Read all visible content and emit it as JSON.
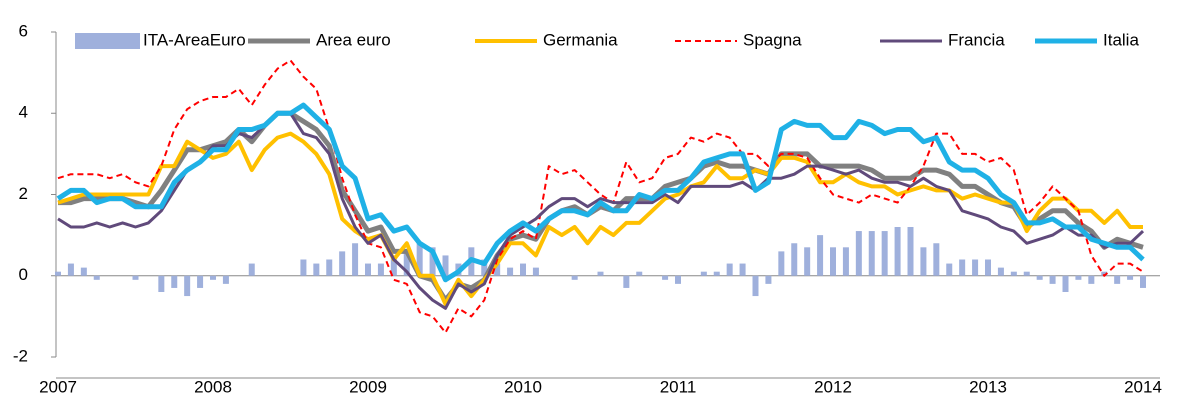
{
  "chart_data": {
    "type": "line",
    "categories": [
      "2007",
      null,
      null,
      null,
      null,
      null,
      null,
      null,
      null,
      null,
      null,
      null,
      "2008",
      null,
      null,
      null,
      null,
      null,
      null,
      null,
      null,
      null,
      null,
      null,
      "2009",
      null,
      null,
      null,
      null,
      null,
      null,
      null,
      null,
      null,
      null,
      null,
      "2010",
      null,
      null,
      null,
      null,
      null,
      null,
      null,
      null,
      null,
      null,
      null,
      "2011",
      null,
      null,
      null,
      null,
      null,
      null,
      null,
      null,
      null,
      null,
      null,
      "2012",
      null,
      null,
      null,
      null,
      null,
      null,
      null,
      null,
      null,
      null,
      null,
      "2013",
      null,
      null,
      null,
      null,
      null,
      null,
      null,
      null,
      null,
      null,
      null,
      "2014"
    ],
    "ylim": [
      -2,
      6
    ],
    "yticks": [
      -2,
      0,
      2,
      4,
      6
    ],
    "grid": false,
    "legend": "top",
    "series": [
      {
        "name": "ITA-AreaEuro",
        "type": "bar",
        "color": "#9fb0dc",
        "values": [
          0.1,
          0.3,
          0.2,
          -0.1,
          0,
          0,
          -0.1,
          0,
          -0.4,
          -0.3,
          -0.5,
          -0.3,
          -0.1,
          -0.2,
          0,
          0.3,
          0,
          0,
          0,
          0.4,
          0.3,
          0.4,
          0.6,
          0.8,
          0.3,
          0.3,
          0.5,
          0.6,
          0.8,
          0.7,
          0.5,
          0.3,
          0.7,
          0.4,
          0.3,
          0.2,
          0.3,
          0.2,
          0,
          0,
          -0.1,
          0,
          0.1,
          0,
          -0.3,
          0.1,
          0,
          -0.1,
          -0.2,
          0,
          0.1,
          0.1,
          0.3,
          0.3,
          -0.5,
          -0.2,
          0.6,
          0.8,
          0.7,
          1.0,
          0.7,
          0.7,
          1.1,
          1.1,
          1.1,
          1.2,
          1.2,
          0.7,
          0.8,
          0.3,
          0.4,
          0.4,
          0.4,
          0.2,
          0.1,
          0.1,
          -0.1,
          -0.2,
          -0.4,
          -0.1,
          -0.2,
          0.1,
          -0.2,
          -0.1,
          -0.3
        ]
      },
      {
        "name": "Area euro",
        "type": "line",
        "color": "#808080",
        "values": [
          1.8,
          1.8,
          1.9,
          1.9,
          1.9,
          1.9,
          1.8,
          1.7,
          2.1,
          2.6,
          3.1,
          3.1,
          3.2,
          3.3,
          3.6,
          3.3,
          3.7,
          4.0,
          4.0,
          3.8,
          3.6,
          3.2,
          2.1,
          1.6,
          1.1,
          1.2,
          0.6,
          0.6,
          0.0,
          -0.1,
          -0.6,
          -0.2,
          -0.3,
          -0.1,
          0.5,
          0.9,
          1.0,
          0.9,
          1.4,
          1.6,
          1.7,
          1.5,
          1.7,
          1.6,
          1.9,
          1.9,
          1.9,
          2.2,
          2.3,
          2.4,
          2.7,
          2.8,
          2.7,
          2.7,
          2.6,
          2.5,
          3.0,
          3.0,
          3.0,
          2.7,
          2.7,
          2.7,
          2.7,
          2.6,
          2.4,
          2.4,
          2.4,
          2.6,
          2.6,
          2.5,
          2.2,
          2.2,
          2.0,
          1.8,
          1.7,
          1.2,
          1.4,
          1.6,
          1.6,
          1.3,
          1.1,
          0.7,
          0.9,
          0.8,
          0.7
        ]
      },
      {
        "name": "Germania",
        "type": "line",
        "color": "#ffc000",
        "values": [
          1.8,
          1.9,
          2.0,
          2.0,
          2.0,
          2.0,
          2.0,
          2.0,
          2.7,
          2.7,
          3.3,
          3.1,
          2.9,
          3.0,
          3.3,
          2.6,
          3.1,
          3.4,
          3.5,
          3.3,
          3.0,
          2.5,
          1.4,
          1.1,
          0.9,
          1.0,
          0.4,
          0.8,
          0.0,
          0.0,
          -0.7,
          -0.1,
          -0.5,
          -0.1,
          0.3,
          0.8,
          0.8,
          0.5,
          1.2,
          1.0,
          1.2,
          0.8,
          1.2,
          1.0,
          1.3,
          1.3,
          1.6,
          1.9,
          2.0,
          2.2,
          2.3,
          2.7,
          2.4,
          2.4,
          2.6,
          2.5,
          2.9,
          2.9,
          2.8,
          2.3,
          2.3,
          2.5,
          2.3,
          2.2,
          2.2,
          2.0,
          2.1,
          2.2,
          2.1,
          2.1,
          1.9,
          2.0,
          1.9,
          1.8,
          1.8,
          1.1,
          1.6,
          1.9,
          1.9,
          1.6,
          1.6,
          1.3,
          1.6,
          1.2,
          1.2
        ]
      },
      {
        "name": "Spagna",
        "type": "line",
        "style": "dashed",
        "color": "#ff0000",
        "values": [
          2.4,
          2.5,
          2.5,
          2.5,
          2.4,
          2.5,
          2.3,
          2.2,
          2.7,
          3.6,
          4.1,
          4.3,
          4.4,
          4.4,
          4.6,
          4.2,
          4.7,
          5.1,
          5.3,
          4.9,
          4.6,
          3.6,
          2.4,
          1.5,
          0.8,
          0.7,
          -0.1,
          -0.2,
          -0.9,
          -1.0,
          -1.4,
          -0.8,
          -1.0,
          -0.6,
          0.4,
          0.9,
          1.1,
          0.9,
          2.7,
          2.5,
          2.6,
          2.3,
          2.0,
          1.8,
          2.8,
          2.3,
          2.4,
          2.9,
          3.0,
          3.4,
          3.3,
          3.5,
          3.4,
          3.0,
          3.0,
          2.7,
          3.0,
          3.0,
          2.9,
          2.4,
          2.0,
          1.9,
          1.8,
          2.0,
          1.9,
          1.8,
          2.2,
          2.7,
          3.5,
          3.5,
          3.0,
          3.0,
          2.8,
          2.9,
          2.6,
          1.5,
          1.8,
          2.2,
          1.9,
          1.6,
          0.5,
          0.0,
          0.3,
          0.3,
          0.1
        ]
      },
      {
        "name": "Francia",
        "type": "line",
        "color": "#604a7b",
        "values": [
          1.4,
          1.2,
          1.2,
          1.3,
          1.2,
          1.3,
          1.2,
          1.3,
          1.6,
          2.1,
          2.6,
          2.8,
          3.2,
          3.2,
          3.5,
          3.4,
          3.7,
          4.0,
          4.0,
          3.5,
          3.4,
          3.0,
          1.9,
          1.2,
          0.8,
          1.0,
          0.4,
          0.1,
          -0.3,
          -0.6,
          -0.8,
          -0.2,
          -0.4,
          -0.2,
          0.5,
          1.0,
          1.2,
          1.4,
          1.7,
          1.9,
          1.9,
          1.7,
          1.9,
          1.8,
          1.8,
          1.8,
          1.8,
          2.0,
          1.8,
          2.2,
          2.2,
          2.2,
          2.2,
          2.3,
          2.1,
          2.4,
          2.4,
          2.5,
          2.7,
          2.7,
          2.6,
          2.5,
          2.6,
          2.4,
          2.3,
          2.3,
          2.2,
          2.4,
          2.2,
          2.1,
          1.6,
          1.5,
          1.4,
          1.2,
          1.1,
          0.8,
          0.9,
          1.0,
          1.2,
          1.0,
          1.0,
          0.7,
          0.8,
          0.8,
          1.1
        ]
      },
      {
        "name": "Italia",
        "type": "line",
        "color": "#1fb1e6",
        "values": [
          1.9,
          2.1,
          2.1,
          1.8,
          1.9,
          1.9,
          1.7,
          1.7,
          1.7,
          2.3,
          2.6,
          2.8,
          3.1,
          3.1,
          3.6,
          3.6,
          3.7,
          4.0,
          4.0,
          4.2,
          3.9,
          3.6,
          2.7,
          2.4,
          1.4,
          1.5,
          1.1,
          1.2,
          0.8,
          0.6,
          -0.1,
          0.1,
          0.4,
          0.3,
          0.8,
          1.1,
          1.3,
          1.1,
          1.4,
          1.6,
          1.6,
          1.5,
          1.8,
          1.6,
          1.6,
          2.0,
          1.9,
          2.1,
          2.1,
          2.4,
          2.8,
          2.9,
          3.0,
          3.0,
          2.1,
          2.3,
          3.6,
          3.8,
          3.7,
          3.7,
          3.4,
          3.4,
          3.8,
          3.7,
          3.5,
          3.6,
          3.6,
          3.3,
          3.4,
          2.8,
          2.6,
          2.6,
          2.4,
          2.0,
          1.8,
          1.3,
          1.3,
          1.4,
          1.2,
          1.2,
          0.9,
          0.8,
          0.7,
          0.7,
          0.4
        ]
      }
    ]
  }
}
